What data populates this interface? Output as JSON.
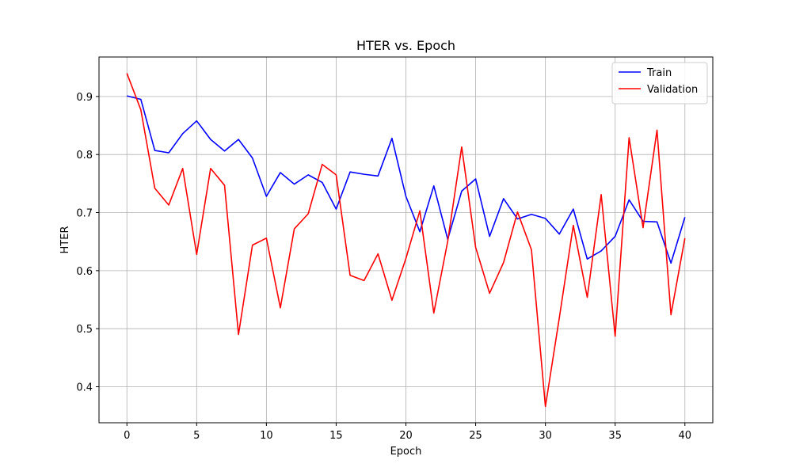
{
  "chart_data": {
    "type": "line",
    "title": "HTER vs. Epoch",
    "xlabel": "Epoch",
    "ylabel": "HTER",
    "xlim": [
      -2,
      42
    ],
    "ylim": [
      0.338,
      0.968
    ],
    "xticks": [
      0,
      5,
      10,
      15,
      20,
      25,
      30,
      35,
      40
    ],
    "yticks": [
      0.4,
      0.5,
      0.6,
      0.7,
      0.8,
      0.9
    ],
    "grid": true,
    "legend_position": "top-right",
    "x": [
      0,
      1,
      2,
      3,
      4,
      5,
      6,
      7,
      8,
      9,
      10,
      11,
      12,
      13,
      14,
      15,
      16,
      17,
      18,
      19,
      20,
      21,
      22,
      23,
      24,
      25,
      26,
      27,
      28,
      29,
      30,
      31,
      32,
      33,
      34,
      35,
      36,
      37,
      38,
      39,
      40
    ],
    "series": [
      {
        "name": "Train",
        "color": "#0000ff",
        "values": [
          0.901,
          0.895,
          0.807,
          0.803,
          0.836,
          0.858,
          0.826,
          0.806,
          0.826,
          0.794,
          0.728,
          0.769,
          0.749,
          0.765,
          0.752,
          0.706,
          0.77,
          0.766,
          0.763,
          0.828,
          0.728,
          0.667,
          0.746,
          0.654,
          0.737,
          0.758,
          0.659,
          0.724,
          0.689,
          0.697,
          0.69,
          0.663,
          0.706,
          0.62,
          0.634,
          0.659,
          0.722,
          0.685,
          0.684,
          0.613,
          0.692
        ]
      },
      {
        "name": "Validation",
        "color": "#ff0000",
        "values": [
          0.94,
          0.877,
          0.742,
          0.713,
          0.776,
          0.628,
          0.776,
          0.747,
          0.49,
          0.644,
          0.656,
          0.536,
          0.672,
          0.698,
          0.783,
          0.765,
          0.592,
          0.583,
          0.629,
          0.549,
          0.621,
          0.703,
          0.527,
          0.651,
          0.813,
          0.64,
          0.561,
          0.614,
          0.701,
          0.636,
          0.366,
          0.519,
          0.678,
          0.554,
          0.731,
          0.487,
          0.829,
          0.674,
          0.842,
          0.524,
          0.656
        ]
      }
    ]
  }
}
